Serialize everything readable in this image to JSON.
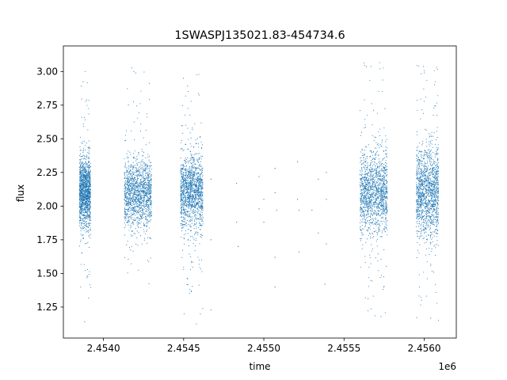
{
  "chart_data": {
    "type": "scatter",
    "title": "1SWASPJ135021.83-454734.6",
    "xlabel": "time",
    "ylabel": "flux",
    "x_offset_label": "1e6",
    "xlim": [
      2.45375,
      2.4562
    ],
    "ylim": [
      1.02,
      3.19
    ],
    "x_ticks": [
      {
        "value": 2.454,
        "label": "2.4540"
      },
      {
        "value": 2.4545,
        "label": "2.4545"
      },
      {
        "value": 2.455,
        "label": "2.4550"
      },
      {
        "value": 2.4555,
        "label": "2.4555"
      },
      {
        "value": 2.456,
        "label": "2.4560"
      }
    ],
    "y_ticks": [
      {
        "value": 1.25,
        "label": "1.25"
      },
      {
        "value": 1.5,
        "label": "1.50"
      },
      {
        "value": 1.75,
        "label": "1.75"
      },
      {
        "value": 2.0,
        "label": "2.00"
      },
      {
        "value": 2.25,
        "label": "2.25"
      },
      {
        "value": 2.5,
        "label": "2.50"
      },
      {
        "value": 2.75,
        "label": "2.75"
      },
      {
        "value": 3.0,
        "label": "3.00"
      }
    ],
    "grid": false,
    "point_color": "#1f77b4",
    "observing_seasons": [
      {
        "x_start": 2.45385,
        "x_end": 2.45392,
        "y_center": 2.1,
        "y_spread": 0.12,
        "y_min": 1.14,
        "y_max": 3.04
      },
      {
        "x_start": 2.45413,
        "x_end": 2.4543,
        "y_center": 2.1,
        "y_spread": 0.12,
        "y_min": 1.2,
        "y_max": 3.04
      },
      {
        "x_start": 2.45448,
        "x_end": 2.45462,
        "y_center": 2.1,
        "y_spread": 0.13,
        "y_min": 1.12,
        "y_max": 2.98
      },
      {
        "x_start": 2.4556,
        "x_end": 2.45577,
        "y_center": 2.1,
        "y_spread": 0.15,
        "y_min": 1.17,
        "y_max": 3.07
      },
      {
        "x_start": 2.45595,
        "x_end": 2.45609,
        "y_center": 2.1,
        "y_spread": 0.16,
        "y_min": 1.15,
        "y_max": 3.07
      }
    ],
    "sparse_points": [
      {
        "x": 2.45467,
        "y": 2.2
      },
      {
        "x": 2.45467,
        "y": 1.75
      },
      {
        "x": 2.45467,
        "y": 1.23
      },
      {
        "x": 2.45483,
        "y": 2.17
      },
      {
        "x": 2.45483,
        "y": 1.88
      },
      {
        "x": 2.45484,
        "y": 1.7
      },
      {
        "x": 2.45497,
        "y": 2.22
      },
      {
        "x": 2.45497,
        "y": 1.98
      },
      {
        "x": 2.455,
        "y": 2.05
      },
      {
        "x": 2.455,
        "y": 1.88
      },
      {
        "x": 2.45507,
        "y": 2.28
      },
      {
        "x": 2.45507,
        "y": 2.1
      },
      {
        "x": 2.45508,
        "y": 1.97
      },
      {
        "x": 2.45507,
        "y": 1.62
      },
      {
        "x": 2.45507,
        "y": 1.4
      },
      {
        "x": 2.45521,
        "y": 2.33
      },
      {
        "x": 2.45521,
        "y": 2.05
      },
      {
        "x": 2.45522,
        "y": 1.97
      },
      {
        "x": 2.45522,
        "y": 1.66
      },
      {
        "x": 2.4553,
        "y": 1.97
      },
      {
        "x": 2.45534,
        "y": 2.2
      },
      {
        "x": 2.45534,
        "y": 1.8
      },
      {
        "x": 2.45539,
        "y": 2.25
      },
      {
        "x": 2.45539,
        "y": 2.05
      },
      {
        "x": 2.45539,
        "y": 1.72
      },
      {
        "x": 2.45538,
        "y": 1.42
      }
    ]
  }
}
